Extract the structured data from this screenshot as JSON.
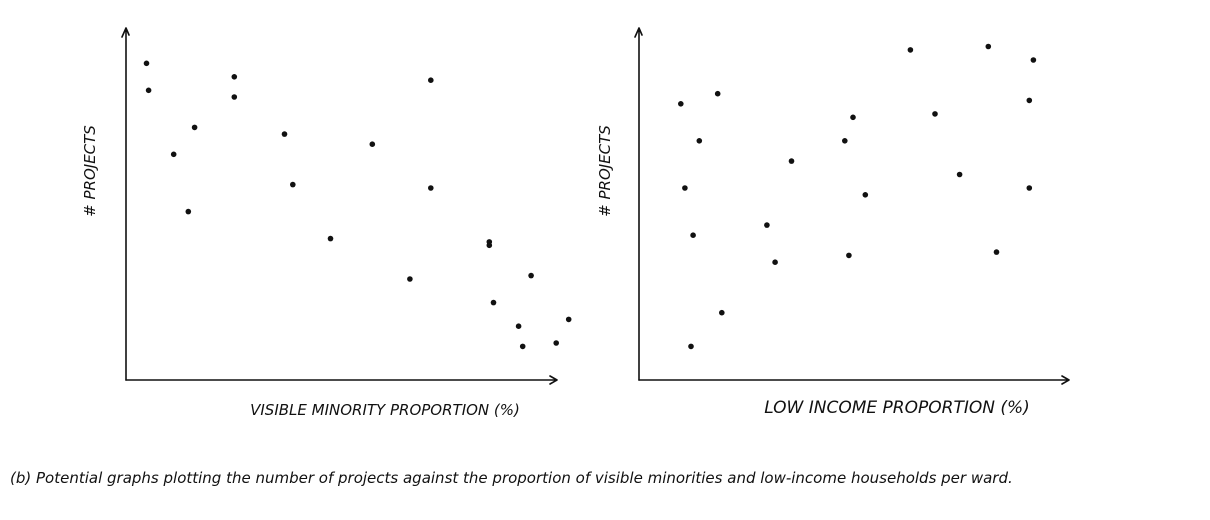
{
  "chart_data": [
    {
      "type": "scatter",
      "title": "",
      "xlabel": "VISIBLE MINORITY PROPORTION (%)",
      "ylabel": "# PROJECTS",
      "xlim": [
        0,
        100
      ],
      "ylim": [
        0,
        100
      ],
      "grid": false,
      "series": [
        {
          "x": [
            3,
            3.5,
            9.5,
            13,
            14.5,
            24,
            24,
            36,
            38,
            47,
            57,
            66,
            71,
            71,
            85,
            85,
            86,
            92,
            93,
            95,
            101,
            104
          ],
          "y": [
            91,
            83,
            64,
            47,
            72,
            87,
            81,
            70,
            55,
            39,
            67,
            27,
            54,
            86,
            38,
            37,
            20,
            13,
            7,
            28,
            8,
            15
          ]
        }
      ]
    },
    {
      "type": "scatter",
      "title": "",
      "xlabel": "LOW INCOME PROPORTION (%)",
      "ylabel": "# PROJECTS",
      "xlim": [
        0,
        100
      ],
      "ylim": [
        0,
        100
      ],
      "grid": false,
      "series": [
        {
          "x": [
            8,
            9,
            10.5,
            11,
            12.5,
            17,
            18,
            29,
            31,
            35,
            48,
            49,
            50,
            53,
            64,
            70,
            76,
            83,
            85,
            93,
            93,
            94
          ],
          "y": [
            79,
            54,
            7,
            40,
            68,
            82,
            17,
            43,
            32,
            62,
            68,
            34,
            75,
            52,
            95,
            76,
            58,
            96,
            35,
            54,
            80,
            92
          ]
        }
      ]
    }
  ],
  "caption": "(b) Potential graphs plotting the number of projects against the proportion of visible minorities and low-income households per ward."
}
